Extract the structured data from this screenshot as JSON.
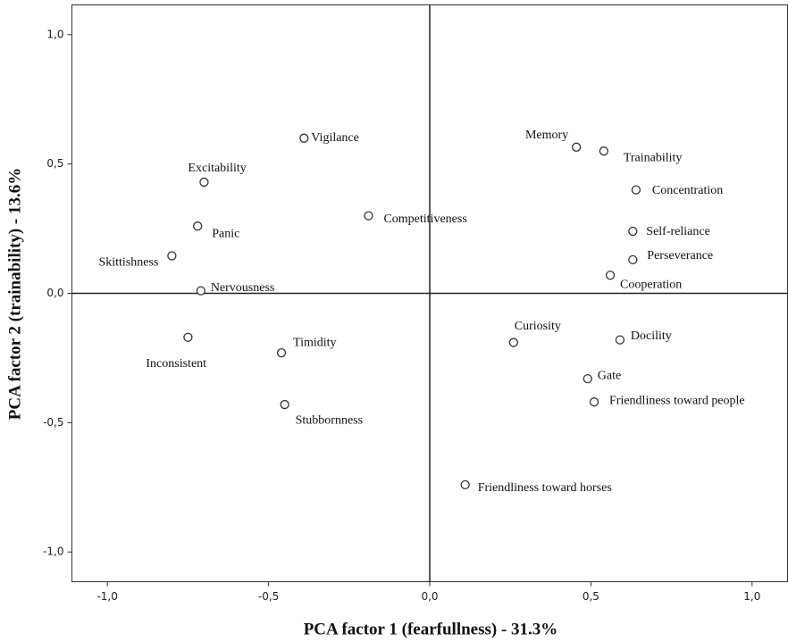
{
  "chart_data": {
    "type": "scatter",
    "x_label": "PCA factor 1 (fearfullness) - 31.3%",
    "y_label": "PCA factor 2 (trainability) - 13.6%",
    "xlim": [
      -1.11,
      1.11
    ],
    "ylim": [
      -1.115,
      1.115
    ],
    "xticks": [
      {
        "value": -1,
        "label": "-1,0"
      },
      {
        "value": -0.5,
        "label": "-0,5"
      },
      {
        "value": 0,
        "label": "0,0"
      },
      {
        "value": 0.5,
        "label": "0,5"
      },
      {
        "value": 1,
        "label": "1,0"
      }
    ],
    "yticks": [
      {
        "value": -1,
        "label": "-1,0"
      },
      {
        "value": -0.5,
        "label": "-0,5"
      },
      {
        "value": 0,
        "label": "0,0"
      },
      {
        "value": 0.5,
        "label": "0,5"
      },
      {
        "value": 1,
        "label": "1,0"
      }
    ],
    "labels": [
      "Vigilance",
      "Excitability",
      "Panic",
      "Skittishness",
      "Nervousness",
      "Inconsistent",
      "Timidity",
      "Stubbornness",
      "Competitiveness",
      "Memory",
      "Trainability",
      "Concentration",
      "Self-reliance",
      "Perseverance",
      "Cooperation",
      "Curiosity",
      "Docility",
      "Gate",
      "Friendliness toward people",
      "Friendliness toward horses"
    ],
    "x": [
      -0.39,
      -0.7,
      -0.72,
      -0.8,
      -0.71,
      -0.75,
      -0.46,
      -0.45,
      -0.19,
      0.455,
      0.54,
      0.64,
      0.63,
      0.63,
      0.56,
      0.26,
      0.59,
      0.49,
      0.51,
      0.11
    ],
    "y": [
      0.6,
      0.43,
      0.26,
      0.145,
      0.01,
      -0.17,
      -0.23,
      -0.43,
      0.3,
      0.565,
      0.55,
      0.4,
      0.24,
      0.13,
      0.07,
      -0.19,
      -0.18,
      -0.33,
      -0.42,
      -0.74
    ],
    "color": "#333333"
  }
}
